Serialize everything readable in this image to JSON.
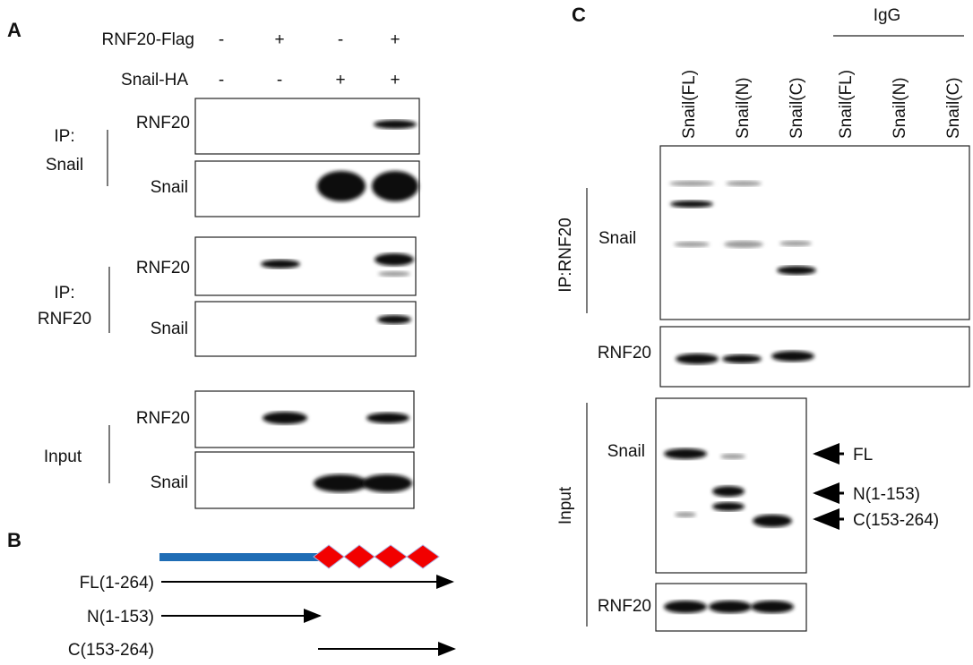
{
  "panel_a": {
    "label": "A",
    "conditions": [
      {
        "label": "RNF20-Flag",
        "signs": [
          "-",
          "+",
          "-",
          "+"
        ]
      },
      {
        "label": "Snail-HA",
        "signs": [
          "-",
          "-",
          "+",
          "+"
        ]
      }
    ],
    "groups": [
      {
        "label": [
          "IP:",
          "Snail"
        ],
        "blots": [
          "RNF20",
          "Snail"
        ]
      },
      {
        "label": [
          "IP:",
          "RNF20"
        ],
        "blots": [
          "RNF20",
          "Snail"
        ]
      },
      {
        "label": [
          "Input"
        ],
        "blots": [
          "RNF20",
          "Snail"
        ]
      }
    ]
  },
  "panel_b": {
    "label": "B",
    "constructs": [
      "FL(1-264)",
      "N(1-153)",
      "C(153-264)"
    ]
  },
  "panel_c": {
    "label": "C",
    "igg": "IgG",
    "lanes": [
      "Snail(FL)",
      "Snail(N)",
      "Snail(C)",
      "Snail(FL)",
      "Snail(N)",
      "Snail(C)"
    ],
    "ip_label": "IP:RNF20",
    "ip_blots": [
      "Snail",
      "RNF20"
    ],
    "input_label": "Input",
    "input_blots": [
      "Snail",
      "RNF20"
    ],
    "markers": [
      "FL",
      "N(1-153)",
      "C(153-264)"
    ]
  }
}
